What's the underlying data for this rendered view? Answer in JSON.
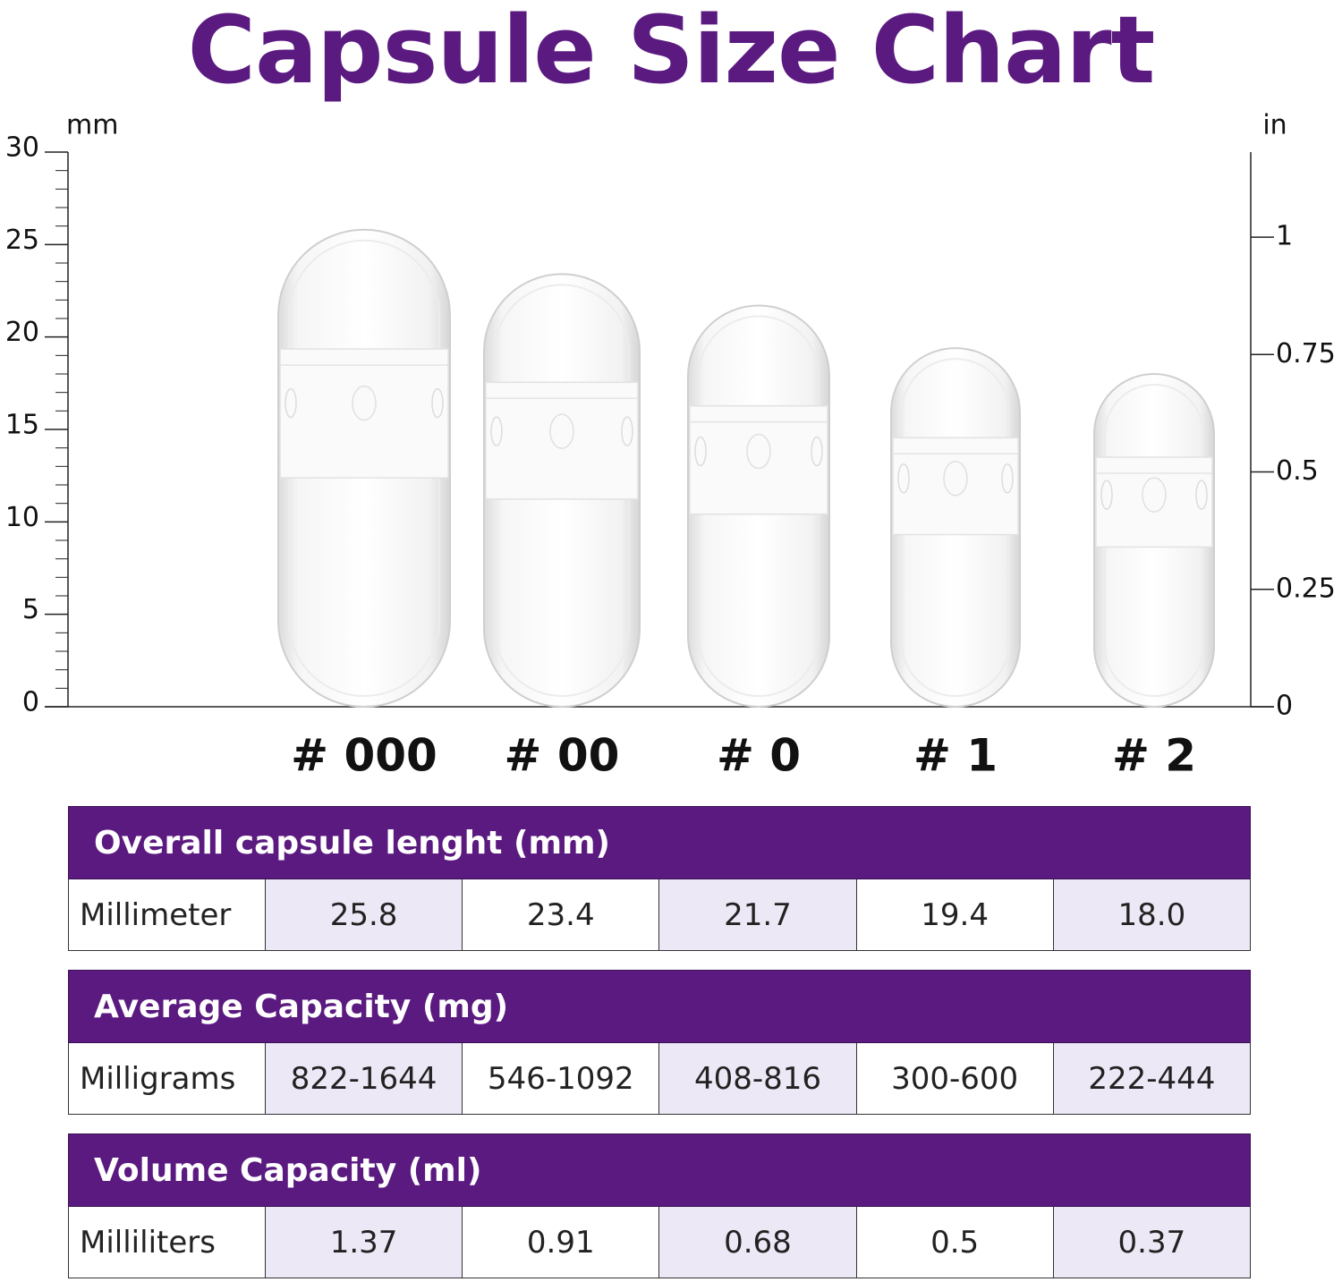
{
  "title": "Capsule Size Chart",
  "chart_data": {
    "type": "bar",
    "left_axis": {
      "label": "mm",
      "range": [
        0,
        30
      ],
      "ticks": [
        0,
        5,
        10,
        15,
        20,
        25,
        30
      ]
    },
    "right_axis": {
      "label": "in",
      "range": [
        0,
        1.1811
      ],
      "ticks": [
        "0",
        "0.25",
        "0.5",
        "0.75",
        "1"
      ]
    },
    "categories": [
      "# 000",
      "# 00",
      "# 0",
      "# 1",
      "# 2"
    ],
    "values": [
      25.8,
      23.4,
      21.7,
      19.4,
      18.0
    ]
  },
  "tables": [
    {
      "header": "Overall capsule lenght (mm)",
      "row_label": "Millimeter",
      "cells": [
        "25.8",
        "23.4",
        "21.7",
        "19.4",
        "18.0"
      ]
    },
    {
      "header": "Average Capacity (mg)",
      "row_label": "Milligrams",
      "cells": [
        "822-1644",
        "546-1092",
        "408-816",
        "300-600",
        "222-444"
      ]
    },
    {
      "header": "Volume Capacity (ml)",
      "row_label": "Milliliters",
      "cells": [
        "1.37",
        "0.91",
        "0.68",
        "0.5",
        "0.37"
      ]
    }
  ],
  "colors": {
    "accent": "#5b1a80",
    "cell_shade": "#ede8f6"
  }
}
